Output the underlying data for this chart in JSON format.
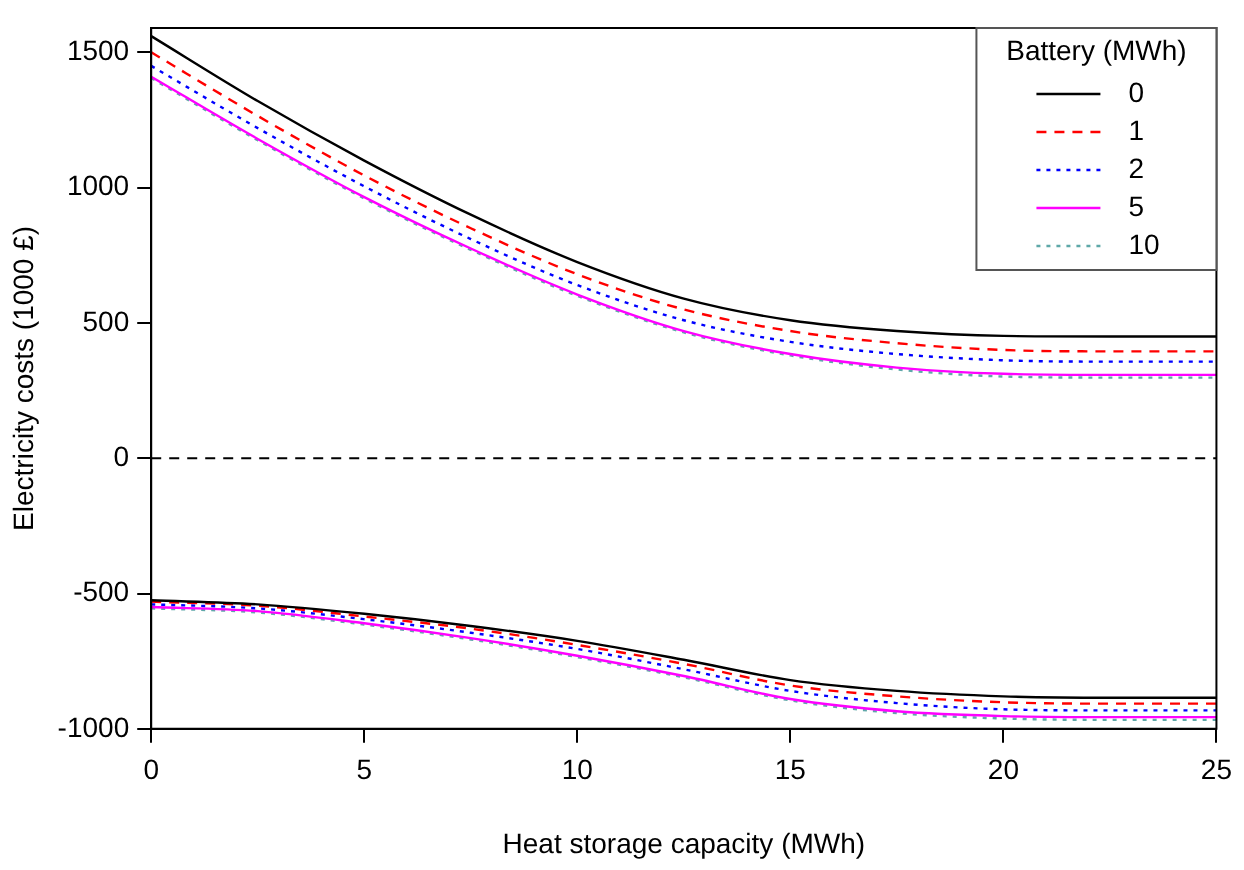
{
  "chart_data": {
    "type": "line",
    "xlabel": "Heat storage capacity (MWh)",
    "ylabel": "Electricity costs (1000 £)",
    "legend_title": "Battery (MWh)",
    "legend": "top right",
    "grid": false,
    "marker": "none",
    "x": [
      0,
      2.5,
      5,
      7.5,
      10,
      12.5,
      15,
      17.5,
      20,
      22.5,
      25
    ],
    "xlim": [
      0,
      25
    ],
    "xticks": [
      0,
      5,
      10,
      15,
      20,
      25
    ],
    "ylim": [
      -1000,
      1590
    ],
    "yticks": [
      -1000,
      -500,
      0,
      500,
      1000,
      1500
    ],
    "ref_lines": [
      {
        "axis": "y",
        "value": 0,
        "color": "#000000",
        "line_style": "dashed"
      }
    ],
    "series": [
      {
        "name": "0",
        "color": "#000000",
        "line_style": "solid",
        "values": [
          1560,
          1320,
          1100,
          900,
          725,
          590,
          510,
          470,
          452,
          450,
          450
        ]
      },
      {
        "name": "1",
        "color": "#ff0000",
        "line_style": "dashed",
        "values": [
          1500,
          1265,
          1045,
          850,
          680,
          550,
          470,
          425,
          400,
          395,
          395
        ]
      },
      {
        "name": "2",
        "color": "#0000ff",
        "line_style": "dotted",
        "values": [
          1450,
          1220,
          1005,
          810,
          640,
          510,
          430,
          385,
          362,
          357,
          357
        ]
      },
      {
        "name": "5",
        "color": "#ff00ff",
        "line_style": "solid",
        "values": [
          1410,
          1180,
          965,
          775,
          605,
          470,
          385,
          335,
          312,
          308,
          308
        ]
      },
      {
        "name": "10",
        "color": "#5fa8a8",
        "line_style": "dotted",
        "values": [
          1405,
          1175,
          960,
          770,
          600,
          465,
          380,
          328,
          302,
          298,
          298
        ]
      },
      {
        "color": "#000000",
        "line_style": "solid",
        "values": [
          -525,
          -540,
          -575,
          -620,
          -675,
          -745,
          -820,
          -860,
          -880,
          -885,
          -885
        ]
      },
      {
        "color": "#ff0000",
        "line_style": "dashed",
        "values": [
          -530,
          -545,
          -585,
          -630,
          -690,
          -760,
          -840,
          -880,
          -902,
          -907,
          -907
        ]
      },
      {
        "color": "#0000ff",
        "line_style": "dotted",
        "values": [
          -540,
          -555,
          -595,
          -645,
          -705,
          -780,
          -860,
          -905,
          -928,
          -932,
          -932
        ]
      },
      {
        "color": "#ff00ff",
        "line_style": "solid",
        "values": [
          -550,
          -565,
          -610,
          -665,
          -730,
          -805,
          -890,
          -935,
          -953,
          -957,
          -957
        ]
      },
      {
        "color": "#5fa8a8",
        "line_style": "dotted",
        "values": [
          -555,
          -570,
          -615,
          -670,
          -735,
          -810,
          -895,
          -942,
          -962,
          -967,
          -967
        ]
      }
    ]
  }
}
